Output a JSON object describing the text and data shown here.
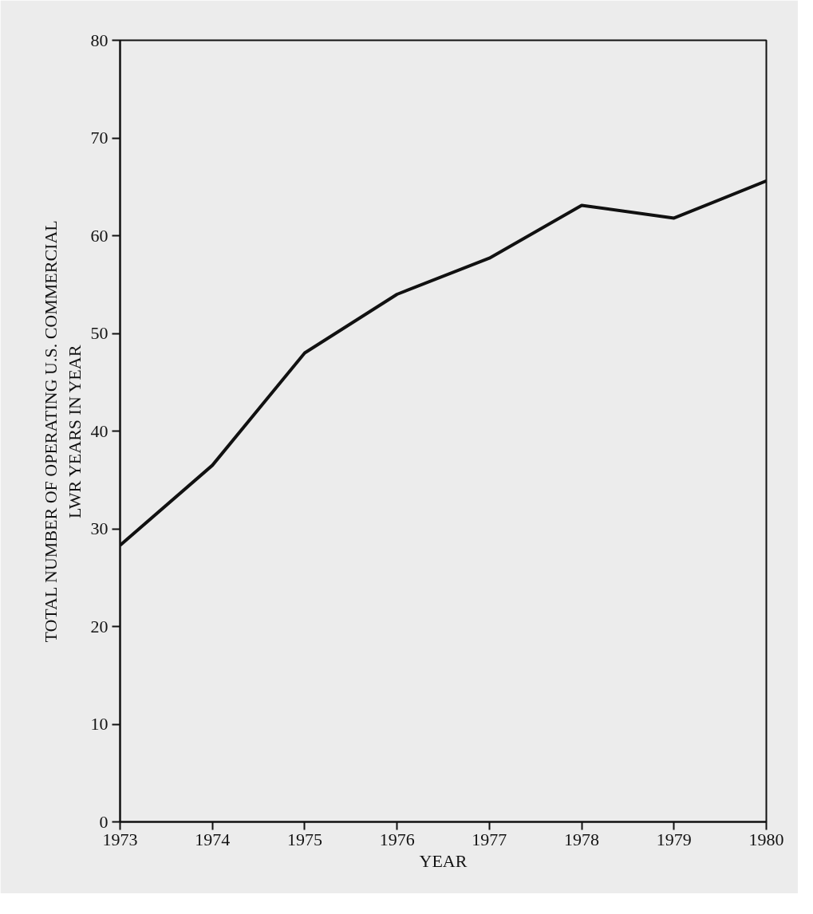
{
  "chart_data": {
    "type": "line",
    "xlabel": "YEAR",
    "ylabel": "TOTAL NUMBER OF OPERATING U.S. COMMERCIAL\nLWR YEARS IN YEAR",
    "x": [
      1973,
      1974,
      1975,
      1976,
      1977,
      1978,
      1979,
      1980
    ],
    "series": [
      {
        "color": "#111111",
        "values": [
          28.3,
          36.5,
          48,
          54,
          57.7,
          63.1,
          61.8,
          65.6
        ]
      }
    ],
    "xlim": [
      1973,
      1980
    ],
    "ylim": [
      0,
      80
    ],
    "xticks": [
      1973,
      1974,
      1975,
      1976,
      1977,
      1978,
      1979,
      1980
    ],
    "yticks": [
      0,
      10,
      20,
      30,
      40,
      50,
      60,
      70,
      80
    ],
    "grid": false,
    "marker": "none",
    "line_style": "solid"
  }
}
